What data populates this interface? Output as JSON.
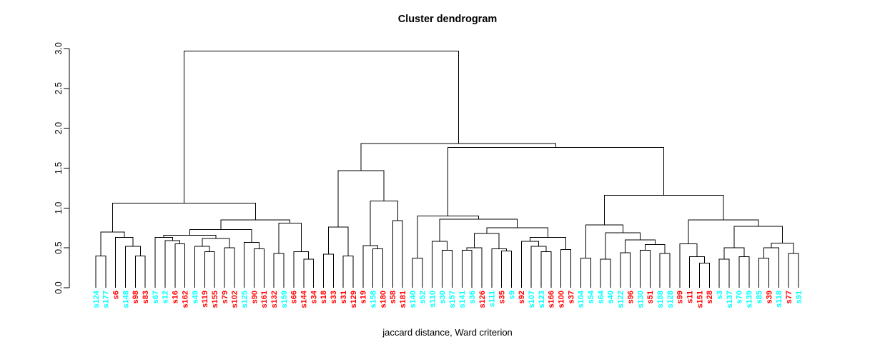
{
  "title": "Cluster dendrogram",
  "xlabel": "jaccard distance, Ward criterion",
  "colors": {
    "red": "#ff0000",
    "cyan": "#00ffff",
    "branch": "#000000",
    "axis": "#000000",
    "background": "#ffffff"
  },
  "y_axis": {
    "tick_values": [
      0,
      0.5,
      1,
      1.5,
      2,
      2.5,
      3
    ],
    "tick_labels": [
      "0.0",
      "0.5",
      "1.0",
      "1.5",
      "2.0",
      "2.5",
      "3.0"
    ]
  },
  "chart_data": {
    "type": "dendrogram",
    "orientation": "vertical",
    "ylim": [
      0,
      3.0
    ],
    "grid": false,
    "leaves": [
      {
        "label": "s124",
        "group": "cyan"
      },
      {
        "label": "s177",
        "group": "cyan"
      },
      {
        "label": "s6",
        "group": "red"
      },
      {
        "label": "s148",
        "group": "cyan"
      },
      {
        "label": "s98",
        "group": "red"
      },
      {
        "label": "s83",
        "group": "red"
      },
      {
        "label": "s67",
        "group": "cyan"
      },
      {
        "label": "s12",
        "group": "cyan"
      },
      {
        "label": "s16",
        "group": "red"
      },
      {
        "label": "s162",
        "group": "red"
      },
      {
        "label": "s49",
        "group": "cyan"
      },
      {
        "label": "s119",
        "group": "red"
      },
      {
        "label": "s155",
        "group": "red"
      },
      {
        "label": "s79",
        "group": "red"
      },
      {
        "label": "s102",
        "group": "red"
      },
      {
        "label": "s125",
        "group": "cyan"
      },
      {
        "label": "s90",
        "group": "red"
      },
      {
        "label": "s161",
        "group": "red"
      },
      {
        "label": "s132",
        "group": "red"
      },
      {
        "label": "s159",
        "group": "cyan"
      },
      {
        "label": "s66",
        "group": "red"
      },
      {
        "label": "s144",
        "group": "red"
      },
      {
        "label": "s34",
        "group": "red"
      },
      {
        "label": "s18",
        "group": "red"
      },
      {
        "label": "s33",
        "group": "red"
      },
      {
        "label": "s31",
        "group": "red"
      },
      {
        "label": "s129",
        "group": "red"
      },
      {
        "label": "s19",
        "group": "red"
      },
      {
        "label": "s158",
        "group": "cyan"
      },
      {
        "label": "s180",
        "group": "red"
      },
      {
        "label": "s58",
        "group": "red"
      },
      {
        "label": "s181",
        "group": "red"
      },
      {
        "label": "s140",
        "group": "cyan"
      },
      {
        "label": "s52",
        "group": "cyan"
      },
      {
        "label": "s110",
        "group": "cyan"
      },
      {
        "label": "s30",
        "group": "cyan"
      },
      {
        "label": "s157",
        "group": "cyan"
      },
      {
        "label": "s141",
        "group": "cyan"
      },
      {
        "label": "s36",
        "group": "cyan"
      },
      {
        "label": "s126",
        "group": "red"
      },
      {
        "label": "s111",
        "group": "cyan"
      },
      {
        "label": "s35",
        "group": "red"
      },
      {
        "label": "s9",
        "group": "cyan"
      },
      {
        "label": "s92",
        "group": "red"
      },
      {
        "label": "s107",
        "group": "cyan"
      },
      {
        "label": "s123",
        "group": "cyan"
      },
      {
        "label": "s166",
        "group": "red"
      },
      {
        "label": "s100",
        "group": "red"
      },
      {
        "label": "s37",
        "group": "red"
      },
      {
        "label": "s104",
        "group": "cyan"
      },
      {
        "label": "s54",
        "group": "cyan"
      },
      {
        "label": "s64",
        "group": "cyan"
      },
      {
        "label": "s40",
        "group": "cyan"
      },
      {
        "label": "s122",
        "group": "cyan"
      },
      {
        "label": "s96",
        "group": "red"
      },
      {
        "label": "s130",
        "group": "cyan"
      },
      {
        "label": "s51",
        "group": "red"
      },
      {
        "label": "s188",
        "group": "cyan"
      },
      {
        "label": "s128",
        "group": "cyan"
      },
      {
        "label": "s99",
        "group": "red"
      },
      {
        "label": "s11",
        "group": "red"
      },
      {
        "label": "s151",
        "group": "red"
      },
      {
        "label": "s28",
        "group": "red"
      },
      {
        "label": "s3",
        "group": "cyan"
      },
      {
        "label": "s137",
        "group": "cyan"
      },
      {
        "label": "s70",
        "group": "cyan"
      },
      {
        "label": "s139",
        "group": "cyan"
      },
      {
        "label": "s85",
        "group": "cyan"
      },
      {
        "label": "s39",
        "group": "red"
      },
      {
        "label": "s118",
        "group": "cyan"
      },
      {
        "label": "s77",
        "group": "red"
      },
      {
        "label": "s91",
        "group": "cyan"
      }
    ],
    "tree": {
      "h": 2.97,
      "c": [
        {
          "h": 1.06,
          "c": [
            {
              "h": 0.7,
              "c": [
                {
                  "h": 0.4,
                  "c": [
                    "s124",
                    "s177"
                  ]
                },
                {
                  "h": 0.63,
                  "c": [
                    "s6",
                    {
                      "h": 0.52,
                      "c": [
                        "s148",
                        {
                          "h": 0.4,
                          "c": [
                            "s98",
                            "s83"
                          ]
                        }
                      ]
                    }
                  ]
                }
              ]
            },
            {
              "h": 0.85,
              "c": [
                {
                  "h": 0.73,
                  "c": [
                    {
                      "h": 0.66,
                      "c": [
                        {
                          "h": 0.63,
                          "c": [
                            "s67",
                            {
                              "h": 0.59,
                              "c": [
                                "s12",
                                {
                                  "h": 0.55,
                                  "c": [
                                    "s16",
                                    "s162"
                                  ]
                                }
                              ]
                            }
                          ]
                        },
                        {
                          "h": 0.62,
                          "c": [
                            {
                              "h": 0.52,
                              "c": [
                                "s49",
                                {
                                  "h": 0.45,
                                  "c": [
                                    "s119",
                                    "s155"
                                  ]
                                }
                              ]
                            },
                            {
                              "h": 0.5,
                              "c": [
                                "s79",
                                "s102"
                              ]
                            }
                          ]
                        }
                      ]
                    },
                    {
                      "h": 0.57,
                      "c": [
                        "s125",
                        {
                          "h": 0.49,
                          "c": [
                            "s90",
                            "s161"
                          ]
                        }
                      ]
                    }
                  ]
                },
                {
                  "h": 0.81,
                  "c": [
                    {
                      "h": 0.43,
                      "c": [
                        "s132",
                        "s159"
                      ]
                    },
                    {
                      "h": 0.45,
                      "c": [
                        "s66",
                        {
                          "h": 0.36,
                          "c": [
                            "s144",
                            "s34"
                          ]
                        }
                      ]
                    }
                  ]
                }
              ]
            }
          ]
        },
        {
          "h": 1.81,
          "c": [
            {
              "h": 1.47,
              "c": [
                {
                  "h": 0.76,
                  "c": [
                    {
                      "h": 0.42,
                      "c": [
                        "s18",
                        "s33"
                      ]
                    },
                    {
                      "h": 0.4,
                      "c": [
                        "s31",
                        "s129"
                      ]
                    }
                  ]
                },
                {
                  "h": 1.09,
                  "c": [
                    {
                      "h": 0.53,
                      "c": [
                        "s19",
                        {
                          "h": 0.49,
                          "c": [
                            "s158",
                            "s180"
                          ]
                        }
                      ]
                    },
                    {
                      "h": 0.84,
                      "c": [
                        "s58",
                        "s181"
                      ]
                    }
                  ]
                }
              ]
            },
            {
              "h": 1.76,
              "c": [
                {
                  "h": 0.9,
                  "c": [
                    {
                      "h": 0.37,
                      "c": [
                        "s140",
                        "s52"
                      ]
                    },
                    {
                      "h": 0.86,
                      "c": [
                        {
                          "h": 0.58,
                          "c": [
                            "s110",
                            {
                              "h": 0.47,
                              "c": [
                                "s30",
                                "s157"
                              ]
                            }
                          ]
                        },
                        {
                          "h": 0.75,
                          "c": [
                            {
                              "h": 0.68,
                              "c": [
                                {
                                  "h": 0.5,
                                  "c": [
                                    {
                                      "h": 0.47,
                                      "c": [
                                        "s141",
                                        "s36"
                                      ]
                                    },
                                    "s126"
                                  ]
                                },
                                {
                                  "h": 0.49,
                                  "c": [
                                    "s111",
                                    {
                                      "h": 0.46,
                                      "c": [
                                        "s35",
                                        "s9"
                                      ]
                                    }
                                  ]
                                }
                              ]
                            },
                            {
                              "h": 0.63,
                              "c": [
                                {
                                  "h": 0.58,
                                  "c": [
                                    "s92",
                                    {
                                      "h": 0.52,
                                      "c": [
                                        "s107",
                                        {
                                          "h": 0.45,
                                          "c": [
                                            "s123",
                                            "s166"
                                          ]
                                        }
                                      ]
                                    }
                                  ]
                                },
                                {
                                  "h": 0.48,
                                  "c": [
                                    "s100",
                                    "s37"
                                  ]
                                }
                              ]
                            }
                          ]
                        }
                      ]
                    }
                  ]
                },
                {
                  "h": 1.16,
                  "c": [
                    {
                      "h": 0.79,
                      "c": [
                        {
                          "h": 0.37,
                          "c": [
                            "s104",
                            "s54"
                          ]
                        },
                        {
                          "h": 0.69,
                          "c": [
                            {
                              "h": 0.36,
                              "c": [
                                "s64",
                                "s40"
                              ]
                            },
                            {
                              "h": 0.6,
                              "c": [
                                {
                                  "h": 0.44,
                                  "c": [
                                    "s122",
                                    "s96"
                                  ]
                                },
                                {
                                  "h": 0.54,
                                  "c": [
                                    {
                                      "h": 0.47,
                                      "c": [
                                        "s130",
                                        "s51"
                                      ]
                                    },
                                    {
                                      "h": 0.43,
                                      "c": [
                                        "s188",
                                        "s128"
                                      ]
                                    }
                                  ]
                                }
                              ]
                            }
                          ]
                        }
                      ]
                    },
                    {
                      "h": 0.85,
                      "c": [
                        {
                          "h": 0.55,
                          "c": [
                            "s99",
                            {
                              "h": 0.39,
                              "c": [
                                "s11",
                                {
                                  "h": 0.31,
                                  "c": [
                                    "s151",
                                    "s28"
                                  ]
                                }
                              ]
                            }
                          ]
                        },
                        {
                          "h": 0.77,
                          "c": [
                            {
                              "h": 0.5,
                              "c": [
                                {
                                  "h": 0.36,
                                  "c": [
                                    "s3",
                                    "s137"
                                  ]
                                },
                                {
                                  "h": 0.39,
                                  "c": [
                                    "s70",
                                    "s139"
                                  ]
                                }
                              ]
                            },
                            {
                              "h": 0.56,
                              "c": [
                                {
                                  "h": 0.5,
                                  "c": [
                                    {
                                      "h": 0.37,
                                      "c": [
                                        "s85",
                                        "s39"
                                      ]
                                    },
                                    "s118"
                                  ]
                                },
                                {
                                  "h": 0.43,
                                  "c": [
                                    "s77",
                                    "s91"
                                  ]
                                }
                              ]
                            }
                          ]
                        }
                      ]
                    }
                  ]
                }
              ]
            }
          ]
        }
      ]
    }
  }
}
